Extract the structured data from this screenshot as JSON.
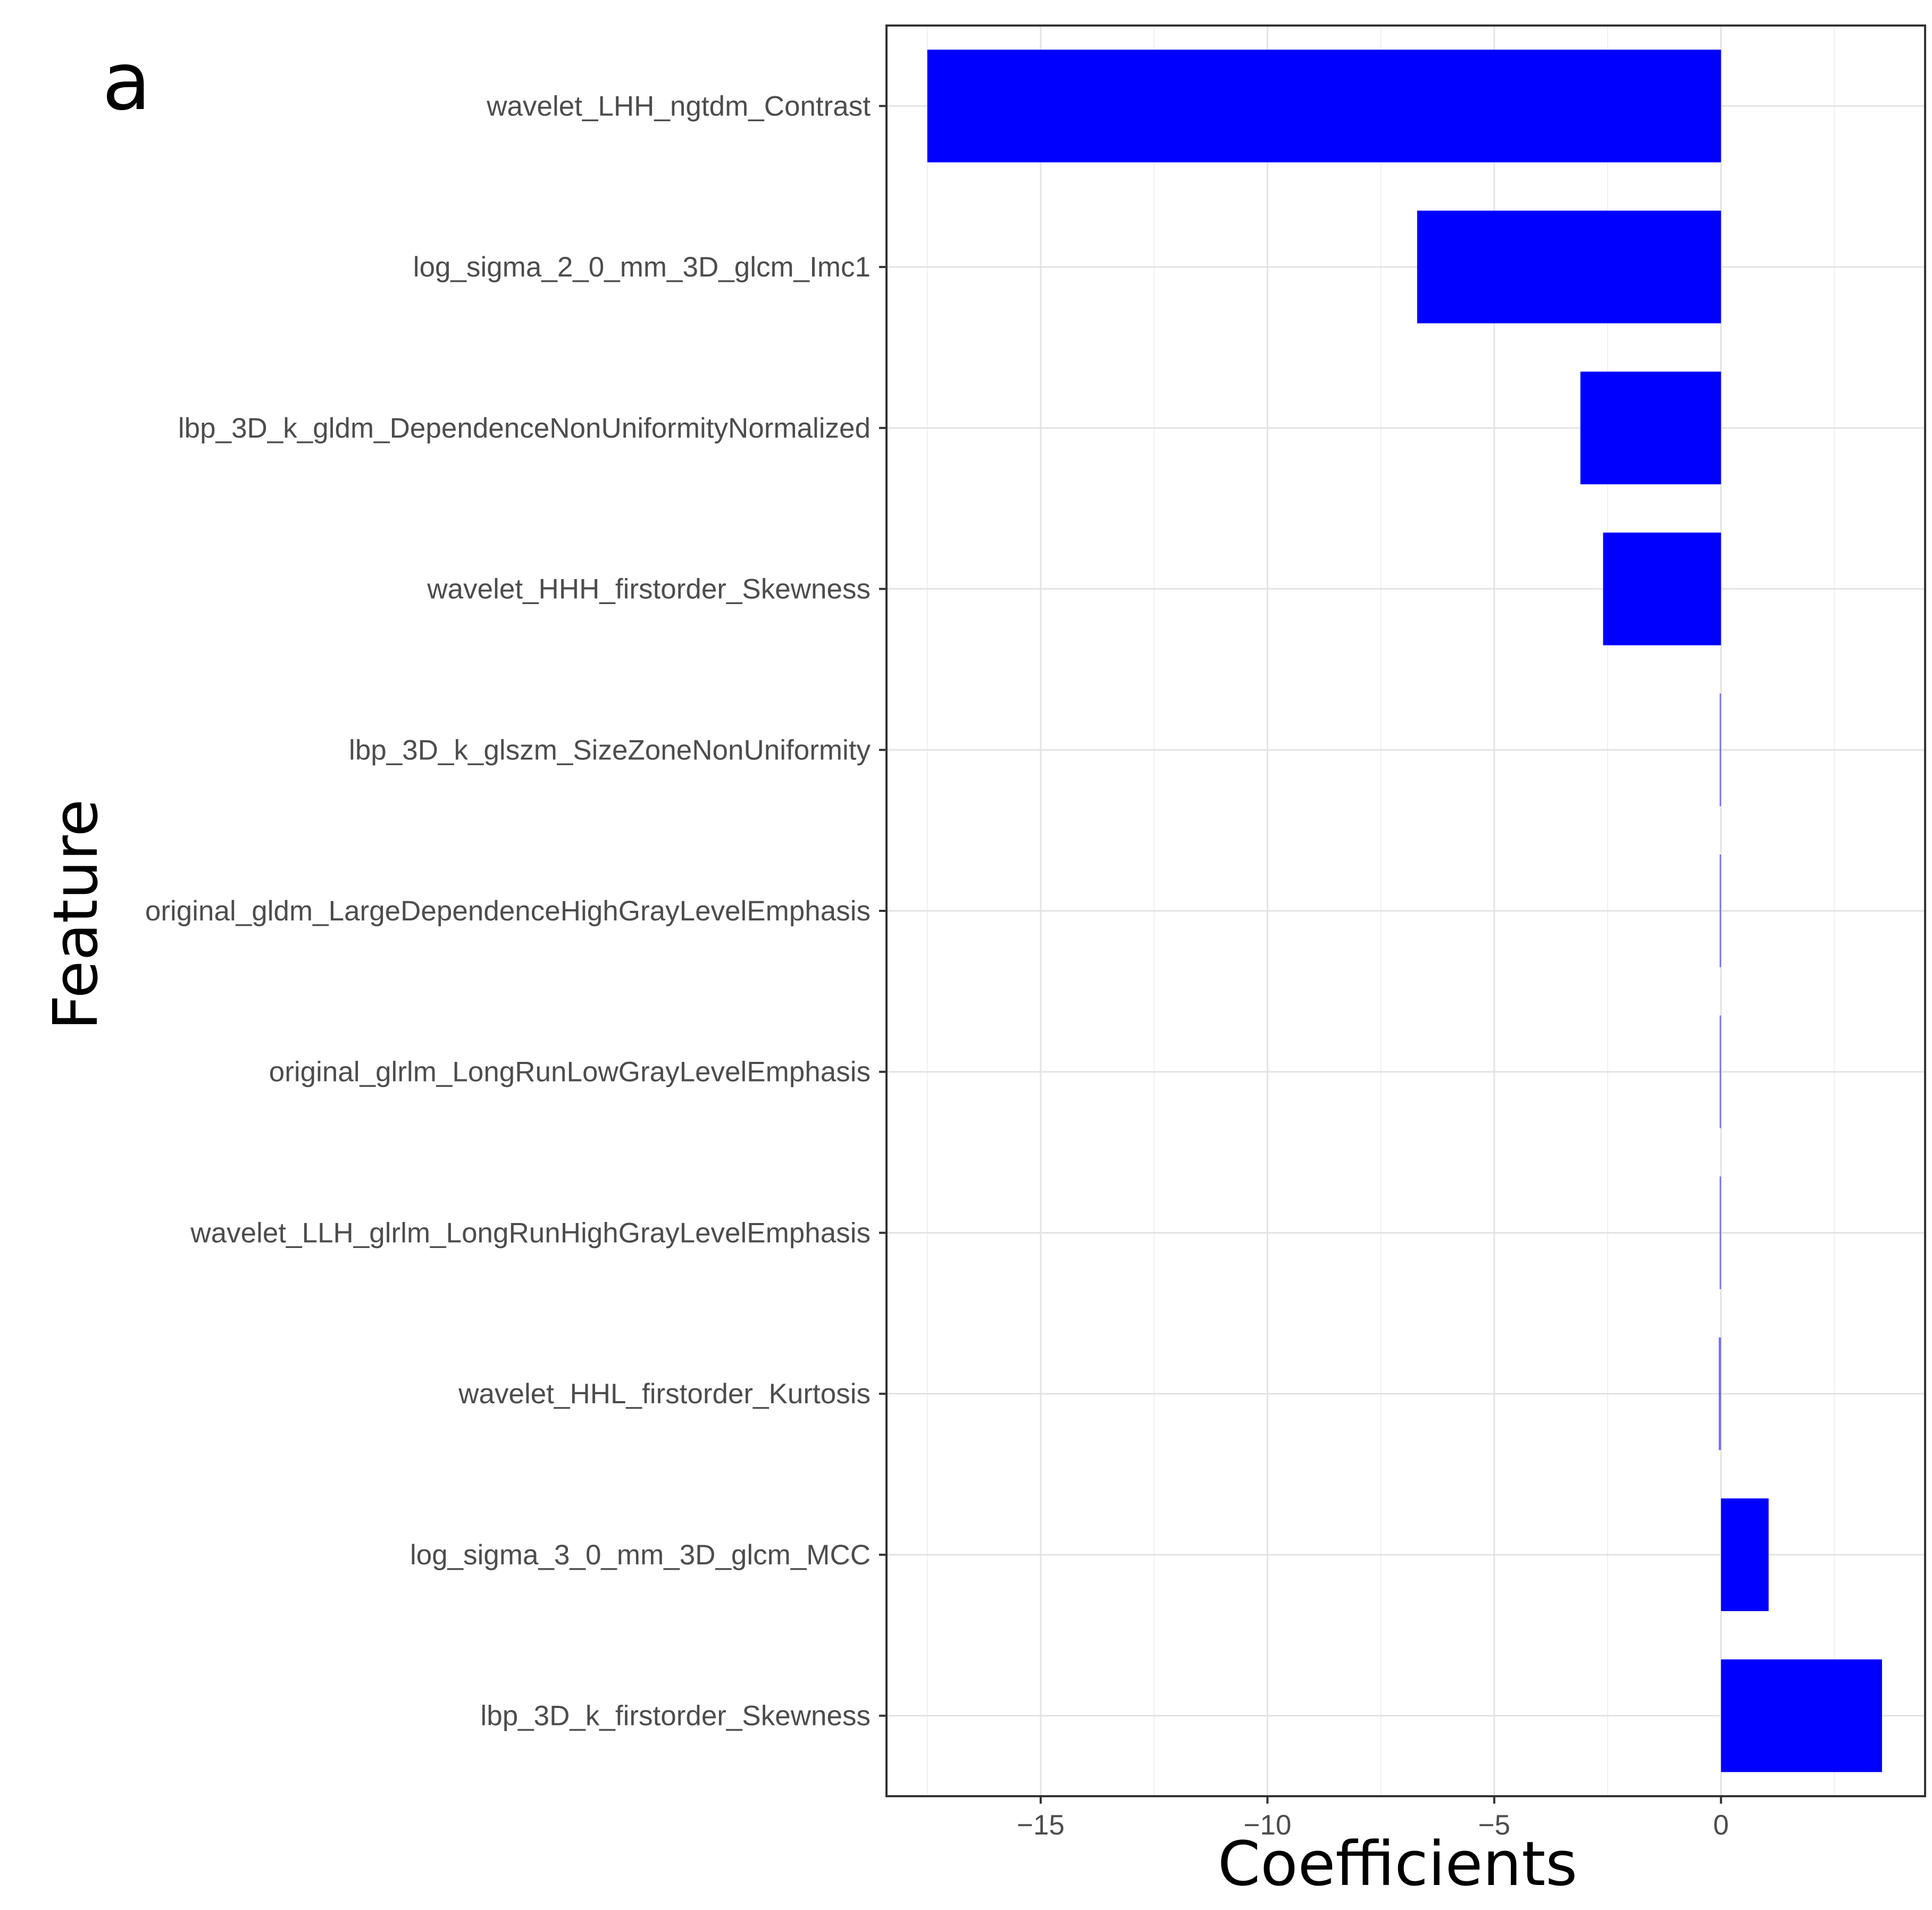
{
  "panel_label": "a",
  "chart_data": {
    "type": "bar",
    "orientation": "horizontal",
    "title": "",
    "xlabel": "Coefficients",
    "ylabel": "Feature",
    "xlim": [
      -18.4,
      4.5
    ],
    "xticks": [
      -15,
      -10,
      -5,
      0
    ],
    "xtick_labels": [
      "−15",
      "−10",
      "−5",
      "0"
    ],
    "grid": true,
    "legend": "none",
    "bar_color": "#0000ff",
    "categories": [
      "wavelet_LHH_ngtdm_Contrast",
      "log_sigma_2_0_mm_3D_glcm_Imc1",
      "lbp_3D_k_gldm_DependenceNonUniformityNormalized",
      "wavelet_HHH_firstorder_Skewness",
      "lbp_3D_k_glszm_SizeZoneNonUniformity",
      "original_gldm_LargeDependenceHighGrayLevelEmphasis",
      "original_glrlm_LongRunLowGrayLevelEmphasis",
      "wavelet_LLH_glrlm_LongRunHighGrayLevelEmphasis",
      "wavelet_HHL_firstorder_Kurtosis",
      "log_sigma_3_0_mm_3D_glcm_MCC",
      "lbp_3D_k_firstorder_Skewness"
    ],
    "values": [
      -17.5,
      -6.7,
      -3.1,
      -2.6,
      -0.02,
      -0.02,
      -0.02,
      -0.02,
      -0.05,
      1.05,
      3.55
    ]
  }
}
